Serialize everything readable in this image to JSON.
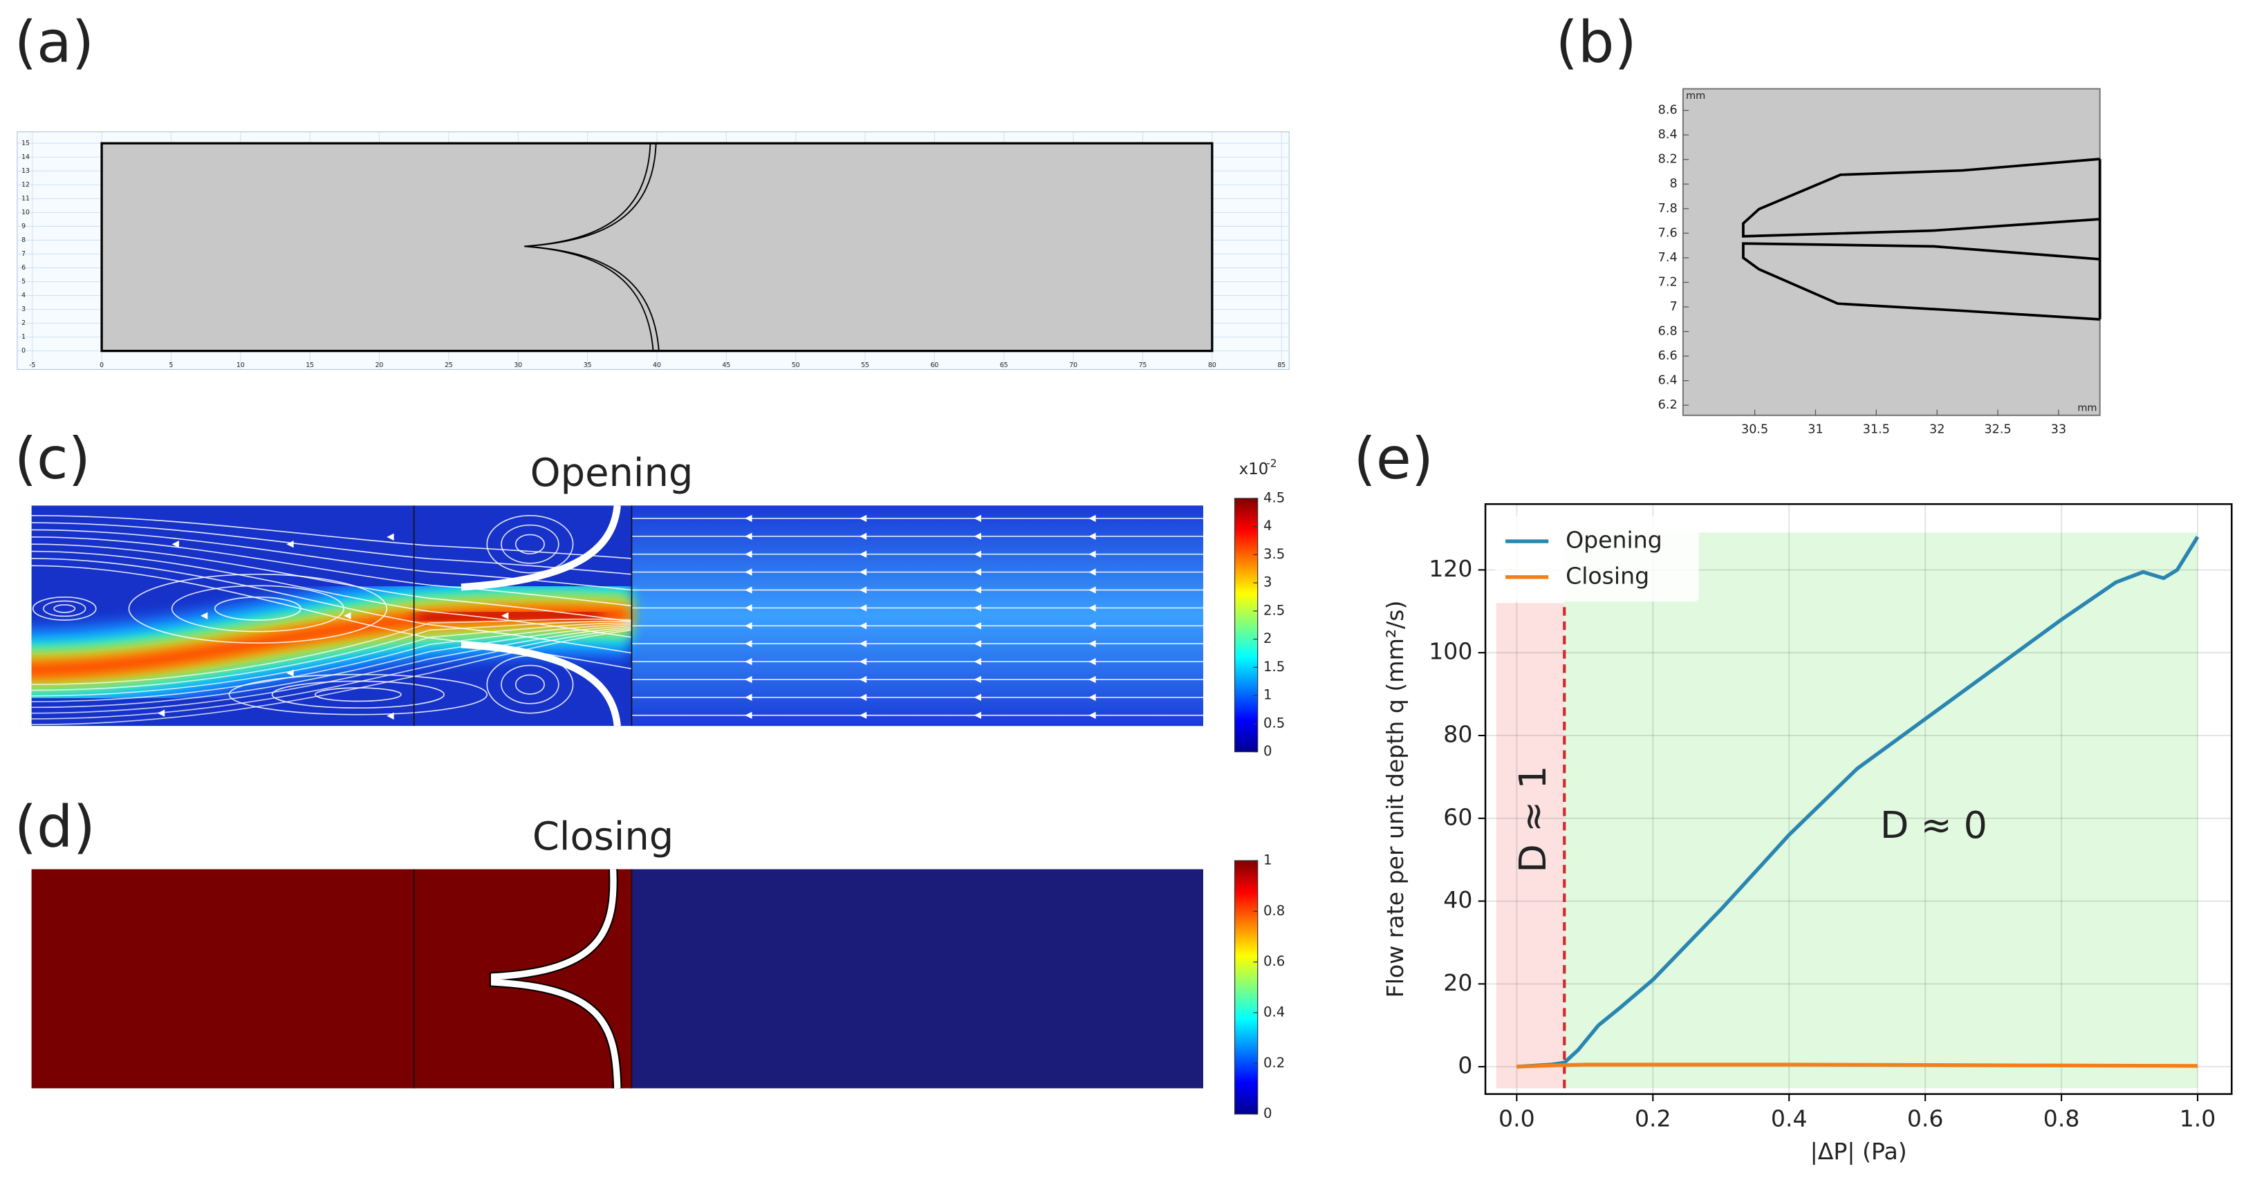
{
  "chart_data": [
    {
      "type": "geometry",
      "label": "(a)",
      "xlim": [
        -6.09,
        85.55
      ],
      "ylim": [
        -1.34,
        15.83
      ],
      "xticks": [
        -5,
        0,
        5,
        10,
        15,
        20,
        25,
        30,
        35,
        40,
        45,
        50,
        55,
        60,
        65,
        70,
        75,
        80,
        85
      ],
      "yticks": [
        0,
        1,
        2,
        3,
        4,
        5,
        6,
        7,
        8,
        9,
        10,
        11,
        12,
        13,
        14,
        15
      ],
      "domain": {
        "x": [
          0,
          80
        ],
        "y": [
          0,
          15
        ]
      },
      "grid": true,
      "fill": "#c8c8c8"
    },
    {
      "type": "outline",
      "label": "(b)",
      "unit": "mm",
      "xlim": [
        29.91,
        33.34
      ],
      "ylim": [
        6.118,
        8.775
      ],
      "xticks": [
        30.5,
        31,
        31.5,
        32,
        32.5,
        33
      ],
      "yticks": [
        6.2,
        6.4,
        6.6,
        6.8,
        7,
        7.2,
        7.4,
        7.6,
        7.8,
        8,
        8.2,
        8.4,
        8.6
      ],
      "fill": "#c8c8c8"
    },
    {
      "type": "field",
      "label": "(c)",
      "title": "Opening",
      "colorbar_multiplier": "x10",
      "colorbar_exponent": "-2",
      "clim": [
        0,
        4.5
      ],
      "cticks": [
        0,
        0.5,
        1,
        1.5,
        2,
        2.5,
        3,
        3.5,
        4,
        4.5
      ],
      "colormap": "jet"
    },
    {
      "type": "field",
      "label": "(d)",
      "title": "Closing",
      "clim": [
        0,
        1
      ],
      "cticks": [
        0,
        0.2,
        0.4,
        0.6,
        0.8,
        1
      ],
      "colormap": "jet"
    },
    {
      "type": "line",
      "label": "(e)",
      "xlabel": "|ΔP| (Pa)",
      "ylabel": "Flow rate per unit depth q (mm²/s)",
      "xlim": [
        -0.046,
        1.05
      ],
      "ylim": [
        -6.6,
        135.9
      ],
      "xticks": [
        {
          "value": 0,
          "label": "0.0"
        },
        0.2,
        0.4,
        0.6,
        0.8,
        {
          "value": 1,
          "label": "1.0"
        }
      ],
      "yticks": [
        0,
        20,
        40,
        60,
        80,
        100,
        120
      ],
      "grid": true,
      "legend": "upper left",
      "series": [
        {
          "name": "Opening",
          "color": "#2a86b0",
          "x": [
            0,
            0.05,
            0.07,
            0.09,
            0.1,
            0.12,
            0.15,
            0.2,
            0.3,
            0.4,
            0.5,
            0.6,
            0.7,
            0.8,
            0.88,
            0.92,
            0.95,
            0.97,
            1.0
          ],
          "values": [
            0,
            0.5,
            1,
            4,
            6,
            10,
            14,
            21,
            38,
            56,
            72,
            84,
            96,
            108,
            117,
            119.5,
            118,
            120,
            128
          ]
        },
        {
          "name": "Closing",
          "color": "#f57f17",
          "x": [
            0,
            0.05,
            0.1,
            0.2,
            0.4,
            0.6,
            0.8,
            1.0
          ],
          "values": [
            0,
            0.3,
            0.5,
            0.5,
            0.5,
            0.4,
            0.3,
            0.2
          ]
        }
      ],
      "regions": [
        {
          "x": [
            -0.03,
            0.07
          ],
          "y": [
            -5.2,
            112
          ],
          "color": "#fde1e1"
        },
        {
          "x": [
            0.07,
            1.0
          ],
          "y": [
            -5.2,
            129
          ],
          "color": "#e0f9df"
        }
      ],
      "threshold": 0.07,
      "threshold_color": "#d62728",
      "annotations": [
        "D ≈ 1",
        "D ≈ 0"
      ]
    }
  ]
}
